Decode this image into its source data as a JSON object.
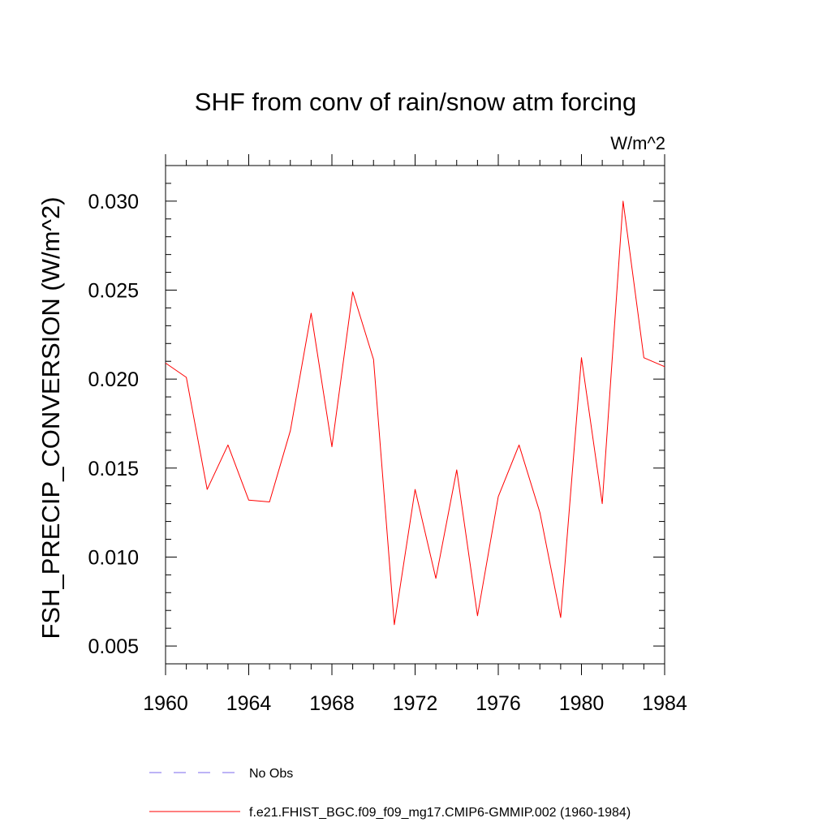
{
  "chart_data": {
    "type": "line",
    "title": "SHF from conv of rain/snow atm forcing",
    "units": "W/m^2",
    "ylabel": "FSH_PRECIP_CONVERSION  (W/m^2)",
    "xlabel": "",
    "xlim": [
      1960,
      1984
    ],
    "ylim": [
      0.004,
      0.032
    ],
    "xticks": [
      1960,
      1964,
      1968,
      1972,
      1976,
      1980,
      1984
    ],
    "xtick_labels": [
      "1960",
      "1964",
      "1968",
      "1972",
      "1976",
      "1980",
      "1984"
    ],
    "yticks": [
      0.005,
      0.01,
      0.015,
      0.02,
      0.025,
      0.03
    ],
    "ytick_labels": [
      "0.005",
      "0.010",
      "0.015",
      "0.020",
      "0.025",
      "0.030"
    ],
    "grid": false,
    "legend_position": "bottom",
    "x": [
      1960,
      1961,
      1962,
      1963,
      1964,
      1965,
      1966,
      1967,
      1968,
      1969,
      1970,
      1971,
      1972,
      1973,
      1974,
      1975,
      1976,
      1977,
      1978,
      1979,
      1980,
      1981,
      1982,
      1983,
      1984
    ],
    "series": [
      {
        "name": "f.e21.FHIST_BGC.f09_f09_mg17.CMIP6-GMMIP.002 (1960-1984)",
        "color": "#ff0000",
        "values": [
          0.0209,
          0.0201,
          0.0138,
          0.0163,
          0.0132,
          0.0131,
          0.0171,
          0.0237,
          0.0162,
          0.0249,
          0.0211,
          0.0062,
          0.0138,
          0.0088,
          0.0149,
          0.0067,
          0.0134,
          0.0163,
          0.0125,
          0.0066,
          0.0212,
          0.013,
          0.03,
          0.0212,
          0.0207
        ]
      }
    ],
    "legend": [
      {
        "label": "No Obs",
        "color": "#7b68ee",
        "style": "dashed"
      },
      {
        "label": "f.e21.FHIST_BGC.f09_f09_mg17.CMIP6-GMMIP.002 (1960-1984)",
        "color": "#ff0000",
        "style": "solid"
      }
    ]
  }
}
